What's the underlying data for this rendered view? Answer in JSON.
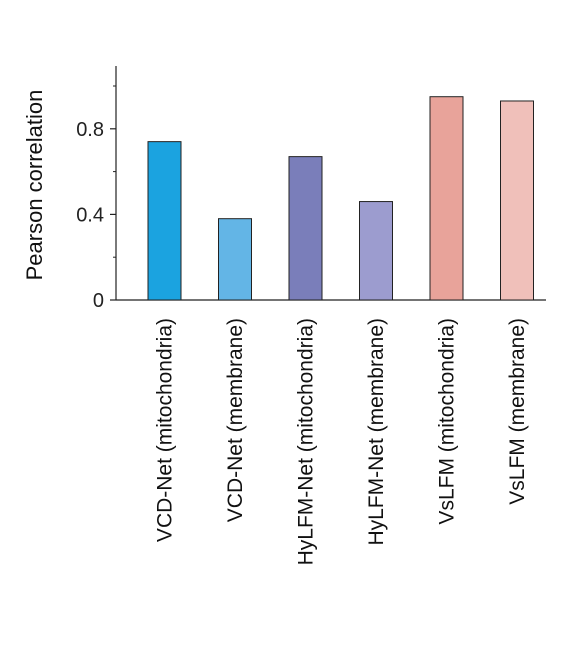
{
  "chart_data": {
    "type": "bar",
    "title": "",
    "xlabel": "",
    "ylabel": "Pearson correlation",
    "ylim": [
      0,
      1.0
    ],
    "yticks": [
      {
        "value": 0,
        "label": "0"
      },
      {
        "value": 0.4,
        "label": "0.4"
      },
      {
        "value": 0.8,
        "label": "0.8"
      }
    ],
    "minor_yticks": [
      0.2,
      0.6,
      1.0
    ],
    "grid": false,
    "categories": [
      "VCD-Net (mitochondria)",
      "VCD-Net (membrane)",
      "HyLFM-Net (mitochondria)",
      "HyLFM-Net (membrane)",
      "VsLFM (mitochondria)",
      "VsLFM (membrane)"
    ],
    "values": [
      0.74,
      0.38,
      0.67,
      0.46,
      0.95,
      0.93
    ],
    "colors": [
      "#1ba3e0",
      "#63b5e6",
      "#7a7eba",
      "#9c9ccf",
      "#e8a39a",
      "#f0c0ba"
    ]
  }
}
